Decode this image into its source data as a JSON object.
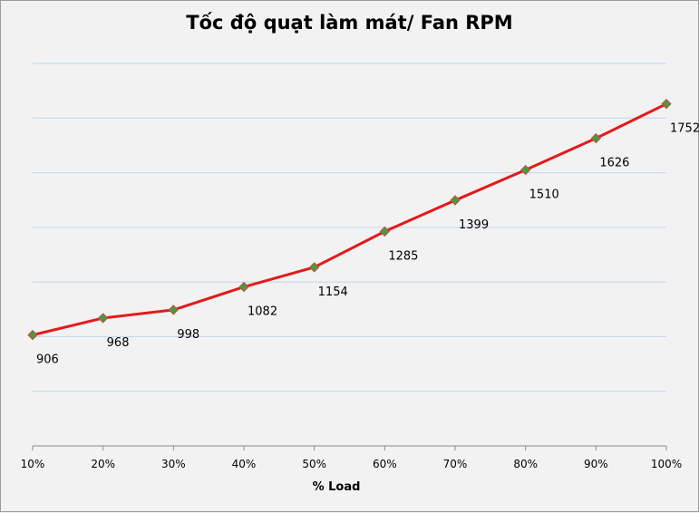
{
  "chart_data": {
    "type": "line",
    "title": "Tốc độ quạt làm mát/ Fan RPM",
    "xlabel": "% Load",
    "ylabel": "",
    "categories": [
      "10%",
      "20%",
      "30%",
      "40%",
      "50%",
      "60%",
      "70%",
      "80%",
      "90%",
      "100%"
    ],
    "series": [
      {
        "values": [
          906,
          968,
          998,
          1082,
          1154,
          1285,
          1399,
          1510,
          1626,
          1752
        ]
      }
    ],
    "ylim": [
      500,
      1900
    ],
    "grid": true,
    "legend": "none",
    "colors": {
      "line": "#e31a1c",
      "marker": "#4a9a3a",
      "marker_outline": "#c0504d",
      "grid": "#c6d3ea"
    }
  }
}
